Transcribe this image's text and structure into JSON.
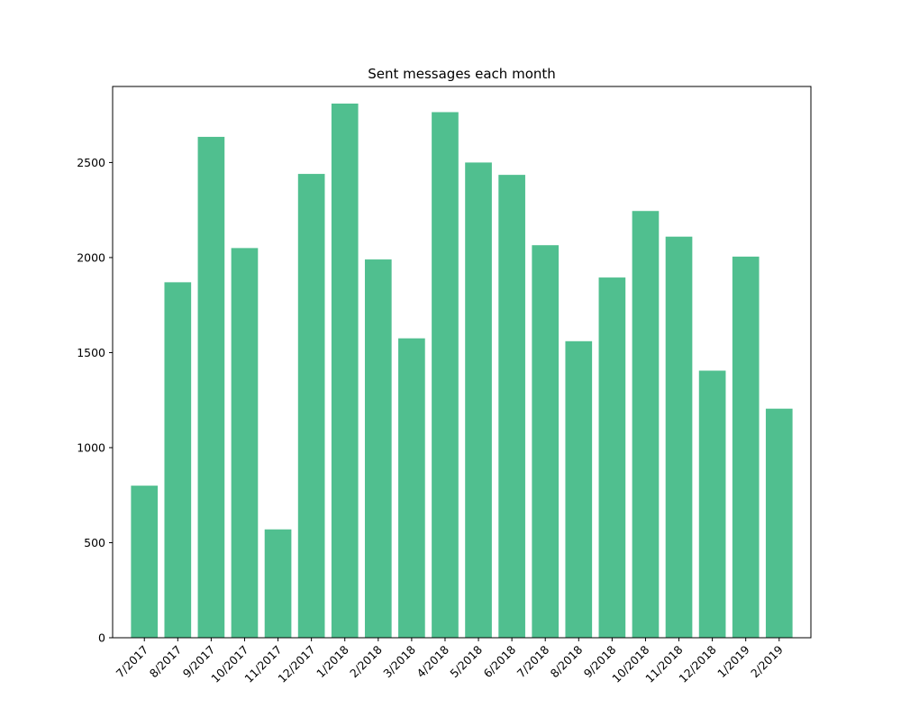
{
  "chart_data": {
    "type": "bar",
    "title": "Sent messages each month",
    "xlabel": "",
    "ylabel": "",
    "categories": [
      "7/2017",
      "8/2017",
      "9/2017",
      "10/2017",
      "11/2017",
      "12/2017",
      "1/2018",
      "2/2018",
      "3/2018",
      "4/2018",
      "5/2018",
      "6/2018",
      "7/2018",
      "8/2018",
      "9/2018",
      "10/2018",
      "11/2018",
      "12/2018",
      "1/2019",
      "2/2019"
    ],
    "values": [
      800,
      1870,
      2635,
      2050,
      570,
      2440,
      2810,
      1990,
      1575,
      2765,
      2500,
      2435,
      2065,
      1560,
      1895,
      2245,
      2110,
      1405,
      2005,
      1205
    ],
    "yticks": [
      0,
      500,
      1000,
      1500,
      2000,
      2500
    ],
    "ylim": [
      0,
      2900
    ],
    "bar_color": "#50bf8f",
    "grid": false,
    "legend": "none"
  }
}
